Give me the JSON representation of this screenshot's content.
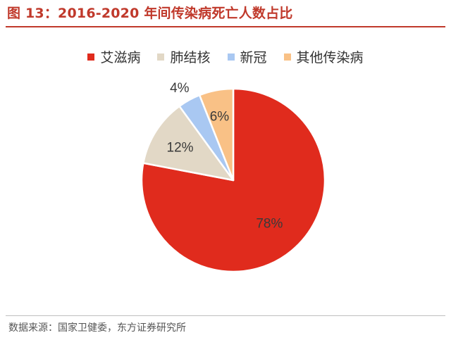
{
  "title": "图 13：2016-2020 年间传染病死亡人数占比",
  "source": "数据来源：国家卫健委，东方证券研究所",
  "chart_data": {
    "type": "pie",
    "categories": [
      "艾滋病",
      "肺结核",
      "新冠",
      "其他传染病"
    ],
    "values": [
      78,
      12,
      4,
      6
    ],
    "labels": [
      "78%",
      "12%",
      "4%",
      "6%"
    ],
    "colors": [
      "#e02b1d",
      "#e2d8c6",
      "#a9c8f2",
      "#f9c186"
    ],
    "start_angle_deg": 0,
    "direction": "clockwise",
    "legend_position": "top",
    "title": ""
  }
}
